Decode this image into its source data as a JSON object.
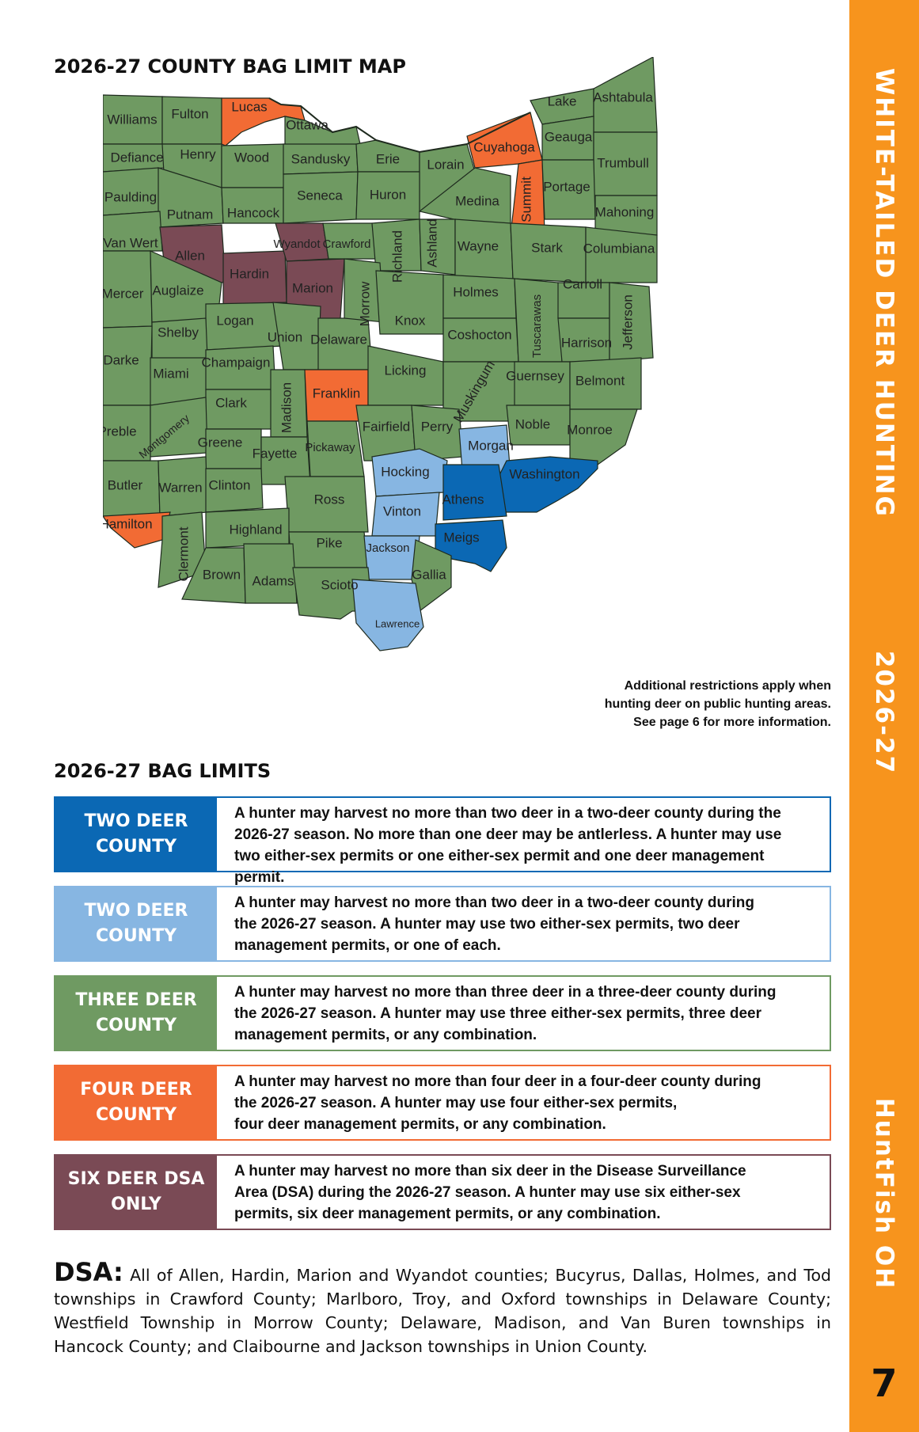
{
  "sidebar": {
    "title": "WHITE-TAILED DEER HUNTING",
    "year": "2026-27",
    "brand": "HuntFish OH"
  },
  "page_number": "7",
  "map": {
    "heading": "2026-27 COUNTY BAG LIMIT MAP",
    "note_lines": [
      "Additional restrictions apply when",
      "hunting deer on public hunting areas.",
      "See page 6 for more information."
    ],
    "colors": {
      "three_deer": "#6f9a62",
      "two_deer_light": "#87b6e2",
      "two_deer_dark": "#0b68b4",
      "four_deer": "#f26b34",
      "six_deer_dsa": "#7a4a55",
      "border": "#1e2a1e"
    },
    "counties": {
      "Williams": "three_deer",
      "Fulton": "three_deer",
      "Lucas": "four_deer",
      "Ottawa": "three_deer",
      "Defiance": "three_deer",
      "Henry": "three_deer",
      "Wood": "three_deer",
      "Sandusky": "three_deer",
      "Erie": "three_deer",
      "Lorain": "three_deer",
      "Cuyahoga": "four_deer",
      "Lake": "three_deer",
      "Ashtabula": "three_deer",
      "Geauga": "three_deer",
      "Trumbull": "three_deer",
      "Summit": "four_deer",
      "Portage": "three_deer",
      "Mahoning": "three_deer",
      "Paulding": "three_deer",
      "Putnam": "three_deer",
      "Hancock": "three_deer",
      "Seneca": "three_deer",
      "Huron": "three_deer",
      "Medina": "three_deer",
      "Van Wert": "three_deer",
      "Allen": "six_deer_dsa",
      "Hardin": "six_deer_dsa",
      "Wyandot": "six_deer_dsa",
      "Marion": "six_deer_dsa",
      "Crawford": "three_deer",
      "Richland": "three_deer",
      "Ashland": "three_deer",
      "Wayne": "three_deer",
      "Stark": "three_deer",
      "Columbiana": "three_deer",
      "Mercer": "three_deer",
      "Auglaize": "three_deer",
      "Logan": "three_deer",
      "Union": "three_deer",
      "Delaware": "three_deer",
      "Morrow": "three_deer",
      "Knox": "three_deer",
      "Holmes": "three_deer",
      "Coshocton": "three_deer",
      "Tuscarawas": "three_deer",
      "Carroll": "three_deer",
      "Harrison": "three_deer",
      "Jefferson": "three_deer",
      "Shelby": "three_deer",
      "Darke": "three_deer",
      "Miami": "three_deer",
      "Champaign": "three_deer",
      "Clark": "three_deer",
      "Madison": "three_deer",
      "Franklin": "four_deer",
      "Licking": "three_deer",
      "Muskingum": "three_deer",
      "Guernsey": "three_deer",
      "Belmont": "three_deer",
      "Preble": "three_deer",
      "Montgomery": "three_deer",
      "Greene": "three_deer",
      "Fayette": "three_deer",
      "Pickaway": "three_deer",
      "Fairfield": "three_deer",
      "Perry": "three_deer",
      "Morgan": "two_deer_light",
      "Noble": "three_deer",
      "Monroe": "three_deer",
      "Washington": "two_deer_dark",
      "Butler": "three_deer",
      "Warren": "three_deer",
      "Clinton": "three_deer",
      "Ross": "three_deer",
      "Hocking": "two_deer_light",
      "Athens": "two_deer_dark",
      "Vinton": "two_deer_light",
      "Meigs": "two_deer_dark",
      "Hamilton": "four_deer",
      "Clermont": "three_deer",
      "Highland": "three_deer",
      "Pike": "three_deer",
      "Jackson": "two_deer_light",
      "Gallia": "three_deer",
      "Brown": "three_deer",
      "Adams": "three_deer",
      "Scioto": "three_deer",
      "Lawrence": "two_deer_light"
    }
  },
  "bag_limits": {
    "heading": "2026-27 BAG LIMITS",
    "rows": [
      {
        "label": "TWO DEER COUNTY",
        "color": "#0b68b4",
        "lines": [
          "A hunter may harvest no more than two deer in a two-deer county during the",
          "2026-27 season. No more than one deer may be antlerless. A hunter may use",
          "two either-sex permits or one either-sex permit and one deer management permit."
        ]
      },
      {
        "label": "TWO DEER COUNTY",
        "color": "#87b6e2",
        "lines": [
          "A hunter may harvest no more than two deer in a two-deer county during",
          "the 2026-27 season. A hunter may use two either-sex permits, two deer",
          "management permits, or one of each."
        ]
      },
      {
        "label": "THREE DEER COUNTY",
        "color": "#6f9a62",
        "lines": [
          "A hunter may harvest no more than three deer in a three-deer county during",
          "the 2026-27 season. A hunter may use three either-sex permits, three deer",
          "management permits, or any combination."
        ]
      },
      {
        "label": "FOUR DEER COUNTY",
        "color": "#f26b34",
        "lines": [
          "A hunter may harvest no more than four deer in a four-deer county during",
          "the 2026-27 season. A hunter may use four either-sex permits,",
          "four deer management permits, or any combination."
        ]
      },
      {
        "label": "SIX DEER DSA ONLY",
        "color": "#7a4a55",
        "lines": [
          "A hunter may harvest no more than six deer in the Disease Surveillance",
          "Area (DSA) during the 2026-27 season. A hunter may use six either-sex",
          "permits, six deer management permits, or any combination."
        ]
      }
    ]
  },
  "dsa": {
    "label": "DSA:",
    "text": "All of Allen, Hardin, Marion and Wyandot counties; Bucyrus, Dallas, Holmes, and Tod townships in Crawford County; Marlboro, Troy, and Oxford townships in Delaware County; Westfield Township in Morrow County; Delaware, Madison, and Van Buren townships in Hancock County; and Claibourne and Jackson townships in Union County."
  }
}
